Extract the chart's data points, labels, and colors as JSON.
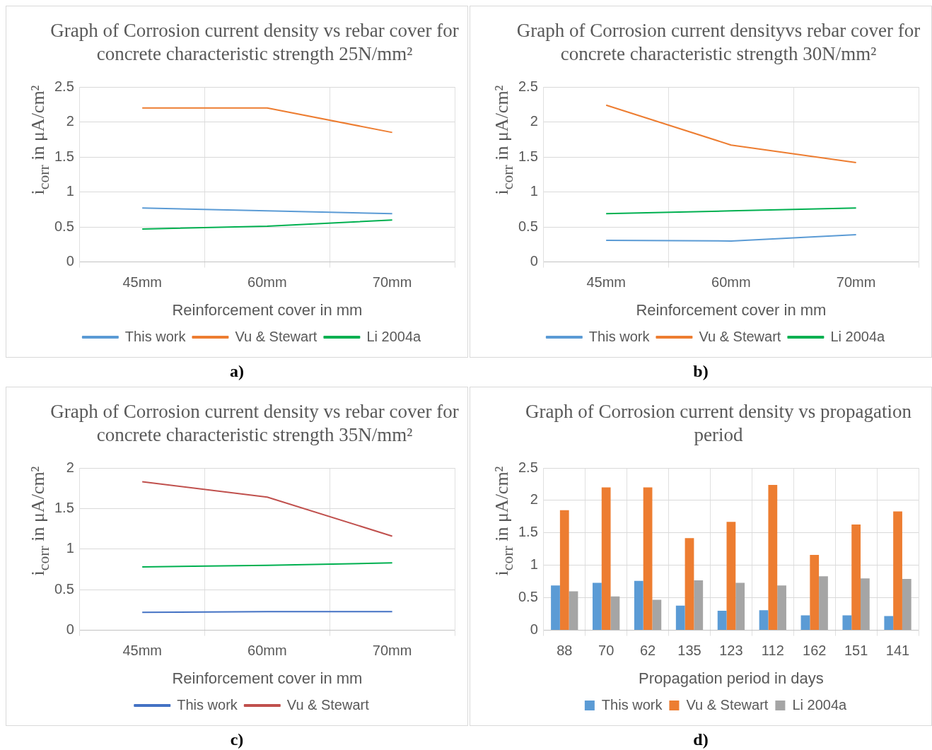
{
  "chart_data": [
    {
      "type": "line",
      "title": "Graph of Corrosion current density vs rebar cover for concrete characteristic strength 25N/mm²",
      "xlabel": "Reinforcement cover in mm",
      "ylabel": "i$_{corr}$ in μA/cm²",
      "categories": [
        "45mm",
        "60mm",
        "70mm"
      ],
      "ylim": [
        0,
        2.5
      ],
      "yticks": [
        0,
        0.5,
        1,
        1.5,
        2,
        2.5
      ],
      "grid": true,
      "legend": "bottom",
      "annotations": [
        "a)"
      ],
      "series": [
        {
          "name": "This work",
          "color": "#5b9bd5",
          "values": [
            0.77,
            0.73,
            0.69
          ]
        },
        {
          "name": "Vu & Stewart",
          "color": "#ed7d31",
          "values": [
            2.2,
            2.2,
            1.85
          ]
        },
        {
          "name": "Li 2004a",
          "color": "#00b050",
          "values": [
            0.47,
            0.51,
            0.6
          ]
        }
      ]
    },
    {
      "type": "line",
      "title": "Graph of Corrosion current densityvs rebar cover for concrete characteristic strength 30N/mm²",
      "xlabel": "Reinforcement cover in mm",
      "ylabel": "i$_{corr}$ in μA/cm²",
      "categories": [
        "45mm",
        "60mm",
        "70mm"
      ],
      "ylim": [
        0,
        2.5
      ],
      "yticks": [
        0,
        0.5,
        1,
        1.5,
        2,
        2.5
      ],
      "grid": true,
      "legend": "bottom",
      "annotations": [
        "b)"
      ],
      "series": [
        {
          "name": "This work",
          "color": "#5b9bd5",
          "values": [
            0.31,
            0.3,
            0.39
          ]
        },
        {
          "name": "Vu & Stewart",
          "color": "#ed7d31",
          "values": [
            2.24,
            1.67,
            1.42
          ]
        },
        {
          "name": "Li 2004a",
          "color": "#00b050",
          "values": [
            0.69,
            0.73,
            0.77
          ]
        }
      ]
    },
    {
      "type": "line",
      "title": "Graph of Corrosion current density vs rebar cover for concrete characteristic strength 35N/mm²",
      "xlabel": "Reinforcement cover in mm",
      "ylabel": "i$_{corr}$ in μA/cm²",
      "categories": [
        "45mm",
        "60mm",
        "70mm"
      ],
      "ylim": [
        0,
        2
      ],
      "yticks": [
        0,
        0.5,
        1,
        1.5,
        2
      ],
      "grid": true,
      "legend": "bottom",
      "annotations": [
        "c)"
      ],
      "series": [
        {
          "name": "This work",
          "color": "#4472c4",
          "values": [
            0.22,
            0.23,
            0.23
          ]
        },
        {
          "name": "Vu & Stewart",
          "color": "#c0504d",
          "values": [
            1.83,
            1.64,
            1.16
          ]
        },
        {
          "color": "#00b050",
          "values": [
            0.78,
            0.8,
            0.83
          ]
        }
      ]
    },
    {
      "type": "bar",
      "title": "Graph of Corrosion current density vs propagation period",
      "xlabel": "Propagation period in days",
      "ylabel": "i$_{corr}$ in μA/cm²",
      "categories": [
        "88",
        "70",
        "62",
        "135",
        "123",
        "112",
        "162",
        "151",
        "141"
      ],
      "ylim": [
        0,
        2.5
      ],
      "yticks": [
        0,
        0.5,
        1,
        1.5,
        2,
        2.5
      ],
      "grid": true,
      "legend": "bottom",
      "annotations": [
        "d)"
      ],
      "series": [
        {
          "name": "This work",
          "color": "#5b9bd5",
          "values": [
            0.69,
            0.73,
            0.76,
            0.38,
            0.3,
            0.31,
            0.23,
            0.23,
            0.22
          ]
        },
        {
          "name": "Vu & Stewart",
          "color": "#ed7d31",
          "values": [
            1.85,
            2.2,
            2.2,
            1.42,
            1.67,
            2.24,
            1.16,
            1.63,
            1.83
          ]
        },
        {
          "name": "Li 2004a",
          "color": "#a5a5a5",
          "values": [
            0.6,
            0.52,
            0.47,
            0.77,
            0.73,
            0.69,
            0.83,
            0.8,
            0.79
          ]
        }
      ]
    }
  ]
}
